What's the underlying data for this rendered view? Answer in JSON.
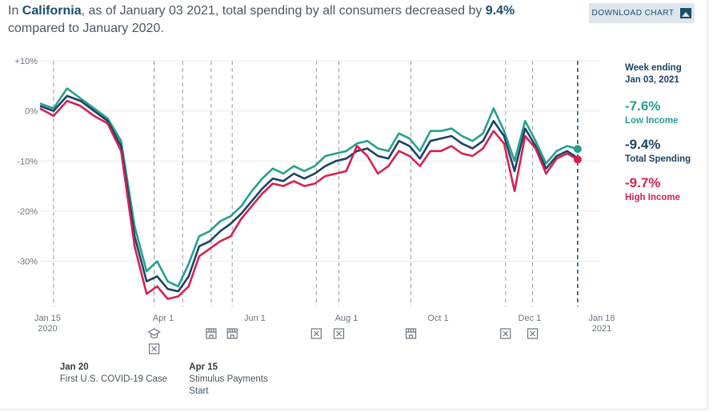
{
  "headline": {
    "prefix": "In ",
    "state": "California",
    "middle": ", as of January 03 2021, total spending by all consumers decreased by ",
    "change": "9.4%",
    "suffix": " compared to January 2020."
  },
  "download_button": {
    "label": "DOWNLOAD CHART",
    "icon": "image-icon"
  },
  "legend": {
    "week_ending_line1": "Week ending",
    "week_ending_line2": "Jan 03, 2021",
    "low_value": "-7.6%",
    "low_label": "Low Income",
    "total_value": "-9.4%",
    "total_label": "Total Spending",
    "high_value": "-9.7%",
    "high_label": "High Income"
  },
  "colors": {
    "low": "#26a08e",
    "total": "#1b4365",
    "high": "#d6224f",
    "grid": "#ebebeb",
    "event_line": "#9a9a9a",
    "tick": "#6b7480"
  },
  "events": [
    {
      "date": "2020-01-20",
      "icon": "",
      "title": "Jan 20",
      "desc": [
        "First U.S. COVID-19 Case"
      ]
    },
    {
      "date": "2020-03-27",
      "icon": "school-icon",
      "title": "",
      "desc": []
    },
    {
      "date": "2020-03-27",
      "icon": "closed-icon",
      "title": "",
      "desc": []
    },
    {
      "date": "2020-04-15",
      "icon": "",
      "title": "Apr 15",
      "desc": [
        "Stimulus Payments",
        "Start"
      ]
    },
    {
      "date": "2020-05-04",
      "icon": "store-icon",
      "title": "",
      "desc": []
    },
    {
      "date": "2020-05-18",
      "icon": "store-icon",
      "title": "",
      "desc": []
    },
    {
      "date": "2020-07-13",
      "icon": "closed-icon",
      "title": "",
      "desc": []
    },
    {
      "date": "2020-07-28",
      "icon": "closed-icon",
      "title": "",
      "desc": []
    },
    {
      "date": "2020-09-14",
      "icon": "store-icon",
      "title": "",
      "desc": []
    },
    {
      "date": "2020-11-16",
      "icon": "closed-icon",
      "title": "",
      "desc": []
    },
    {
      "date": "2020-12-04",
      "icon": "closed-icon",
      "title": "",
      "desc": []
    }
  ],
  "chart_data": {
    "type": "line",
    "title": "",
    "xlabel": "",
    "ylabel": "",
    "x_ticks": [
      {
        "date": "2020-01-15",
        "label": [
          "Jan 15",
          "2020"
        ]
      },
      {
        "date": "2020-04-01",
        "label": [
          "Apr 1"
        ]
      },
      {
        "date": "2020-06-01",
        "label": [
          "Jun 1"
        ]
      },
      {
        "date": "2020-08-01",
        "label": [
          "Aug 1"
        ]
      },
      {
        "date": "2020-10-01",
        "label": [
          "Oct 1"
        ]
      },
      {
        "date": "2020-12-01",
        "label": [
          "Dec 1"
        ]
      },
      {
        "date": "2021-01-18",
        "label": [
          "Jan 18",
          "2021"
        ]
      }
    ],
    "y_ticks": [
      {
        "value": 10,
        "label": "+10%"
      },
      {
        "value": 0,
        "label": "0%"
      },
      {
        "value": -10,
        "label": "-10%"
      },
      {
        "value": -20,
        "label": "-20%"
      },
      {
        "value": -30,
        "label": "-30%"
      }
    ],
    "ylim": [
      -39,
      10
    ],
    "xlim": [
      "2020-01-11",
      "2021-01-18"
    ],
    "current_date": "2021-01-03",
    "series": [
      {
        "name": "Low Income",
        "key": "low",
        "x": [
          "2020-01-11",
          "2020-01-20",
          "2020-01-29",
          "2020-02-07",
          "2020-02-16",
          "2020-02-25",
          "2020-03-05",
          "2020-03-14",
          "2020-03-22",
          "2020-03-29",
          "2020-04-05",
          "2020-04-12",
          "2020-04-19",
          "2020-04-26",
          "2020-05-03",
          "2020-05-10",
          "2020-05-17",
          "2020-05-24",
          "2020-05-31",
          "2020-06-07",
          "2020-06-14",
          "2020-06-21",
          "2020-06-28",
          "2020-07-05",
          "2020-07-12",
          "2020-07-19",
          "2020-07-26",
          "2020-08-02",
          "2020-08-09",
          "2020-08-16",
          "2020-08-23",
          "2020-08-30",
          "2020-09-06",
          "2020-09-13",
          "2020-09-20",
          "2020-09-27",
          "2020-10-04",
          "2020-10-11",
          "2020-10-18",
          "2020-10-25",
          "2020-11-01",
          "2020-11-08",
          "2020-11-15",
          "2020-11-22",
          "2020-11-29",
          "2020-12-06",
          "2020-12-13",
          "2020-12-20",
          "2020-12-27",
          "2021-01-03"
        ],
        "values": [
          1.5,
          0.5,
          4.5,
          2.5,
          0.5,
          -1.5,
          -6.0,
          -23.0,
          -32.0,
          -30.0,
          -34.0,
          -35.0,
          -30.5,
          -25.0,
          -24.0,
          -22.0,
          -21.0,
          -19.0,
          -16.0,
          -13.5,
          -11.5,
          -12.5,
          -11.0,
          -12.0,
          -11.0,
          -9.0,
          -8.5,
          -8.0,
          -6.5,
          -6.0,
          -7.5,
          -8.0,
          -4.5,
          -5.5,
          -8.0,
          -4.0,
          -4.0,
          -3.5,
          -5.0,
          -6.0,
          -4.5,
          0.5,
          -4.0,
          -10.0,
          -2.0,
          -6.0,
          -10.5,
          -8.0,
          -7.0,
          -7.6
        ]
      },
      {
        "name": "Total Spending",
        "key": "total",
        "x": [
          "2020-01-11",
          "2020-01-20",
          "2020-01-29",
          "2020-02-07",
          "2020-02-16",
          "2020-02-25",
          "2020-03-05",
          "2020-03-14",
          "2020-03-22",
          "2020-03-29",
          "2020-04-05",
          "2020-04-12",
          "2020-04-19",
          "2020-04-26",
          "2020-05-03",
          "2020-05-10",
          "2020-05-17",
          "2020-05-24",
          "2020-05-31",
          "2020-06-07",
          "2020-06-14",
          "2020-06-21",
          "2020-06-28",
          "2020-07-05",
          "2020-07-12",
          "2020-07-19",
          "2020-07-26",
          "2020-08-02",
          "2020-08-09",
          "2020-08-16",
          "2020-08-23",
          "2020-08-30",
          "2020-09-06",
          "2020-09-13",
          "2020-09-20",
          "2020-09-27",
          "2020-10-04",
          "2020-10-11",
          "2020-10-18",
          "2020-10-25",
          "2020-11-01",
          "2020-11-08",
          "2020-11-15",
          "2020-11-22",
          "2020-11-29",
          "2020-12-06",
          "2020-12-13",
          "2020-12-20",
          "2020-12-27",
          "2021-01-03"
        ],
        "values": [
          1.0,
          0.0,
          3.0,
          2.0,
          0.0,
          -2.0,
          -7.0,
          -25.0,
          -34.0,
          -33.0,
          -35.5,
          -36.0,
          -33.0,
          -27.0,
          -26.0,
          -24.0,
          -22.5,
          -20.5,
          -18.0,
          -15.5,
          -13.5,
          -14.0,
          -12.5,
          -13.5,
          -12.5,
          -11.0,
          -10.0,
          -9.5,
          -8.0,
          -7.5,
          -9.0,
          -9.5,
          -6.0,
          -7.0,
          -9.5,
          -6.0,
          -5.5,
          -5.0,
          -6.5,
          -7.5,
          -6.0,
          -2.0,
          -5.0,
          -12.0,
          -3.5,
          -7.0,
          -11.5,
          -9.0,
          -8.0,
          -9.4
        ]
      },
      {
        "name": "High Income",
        "key": "high",
        "x": [
          "2020-01-11",
          "2020-01-20",
          "2020-01-29",
          "2020-02-07",
          "2020-02-16",
          "2020-02-25",
          "2020-03-05",
          "2020-03-14",
          "2020-03-22",
          "2020-03-29",
          "2020-04-05",
          "2020-04-12",
          "2020-04-19",
          "2020-04-26",
          "2020-05-03",
          "2020-05-10",
          "2020-05-17",
          "2020-05-24",
          "2020-05-31",
          "2020-06-07",
          "2020-06-14",
          "2020-06-21",
          "2020-06-28",
          "2020-07-05",
          "2020-07-12",
          "2020-07-19",
          "2020-07-26",
          "2020-08-02",
          "2020-08-09",
          "2020-08-16",
          "2020-08-23",
          "2020-08-30",
          "2020-09-06",
          "2020-09-13",
          "2020-09-20",
          "2020-09-27",
          "2020-10-04",
          "2020-10-11",
          "2020-10-18",
          "2020-10-25",
          "2020-11-01",
          "2020-11-08",
          "2020-11-15",
          "2020-11-22",
          "2020-11-29",
          "2020-12-06",
          "2020-12-13",
          "2020-12-20",
          "2020-12-27",
          "2021-01-03"
        ],
        "values": [
          0.5,
          -1.0,
          2.0,
          1.0,
          -1.0,
          -2.5,
          -8.0,
          -27.0,
          -36.5,
          -35.0,
          -37.5,
          -37.0,
          -35.0,
          -29.0,
          -27.5,
          -26.0,
          -25.0,
          -21.5,
          -19.0,
          -16.5,
          -14.5,
          -15.0,
          -14.0,
          -15.0,
          -14.5,
          -13.0,
          -12.5,
          -12.0,
          -7.0,
          -9.0,
          -12.5,
          -11.0,
          -8.0,
          -9.0,
          -11.0,
          -8.0,
          -8.0,
          -7.0,
          -8.5,
          -9.0,
          -7.5,
          -4.0,
          -6.5,
          -16.0,
          -5.0,
          -7.5,
          -12.5,
          -9.5,
          -8.5,
          -9.7
        ]
      }
    ]
  }
}
